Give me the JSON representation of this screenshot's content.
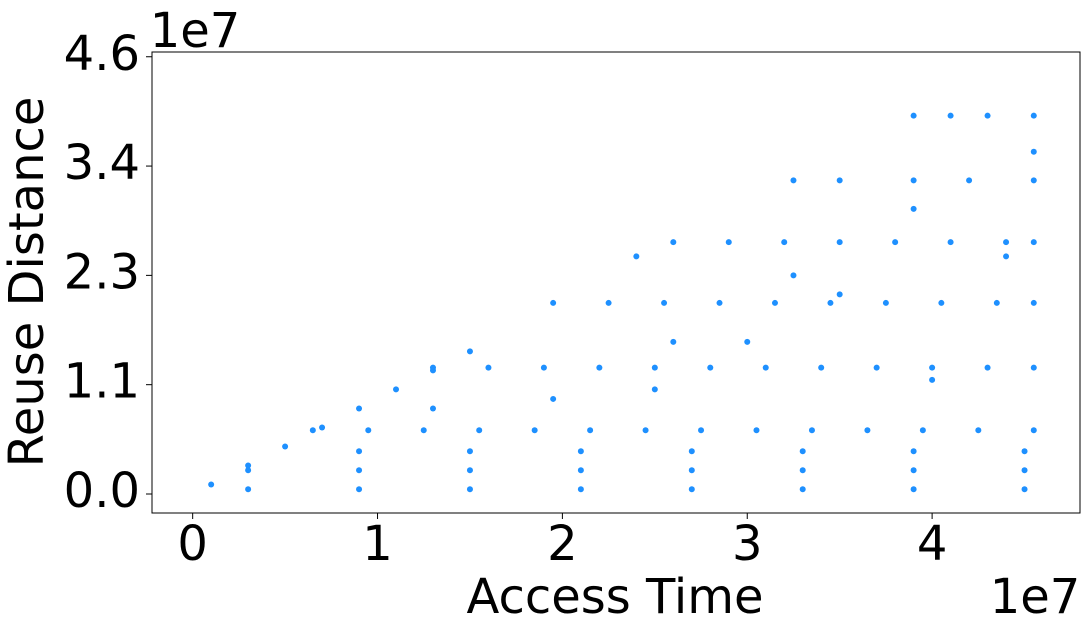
{
  "chart_data": {
    "type": "scatter",
    "x_label": "Access Time",
    "y_label": "Reuse Distance",
    "x_offset_label": "1e7",
    "y_offset_label": "1e7",
    "color": "#1e90ff",
    "x": [
      0.1,
      0.3,
      0.5,
      0.7,
      0.9,
      1.1,
      1.3,
      1.5,
      2.4,
      0.65,
      0.95,
      1.25,
      1.55,
      1.85,
      2.15,
      2.45,
      2.75,
      3.05,
      3.35,
      3.65,
      3.95,
      4.25,
      4.55,
      1.3,
      1.6,
      1.9,
      2.2,
      2.5,
      2.8,
      3.1,
      3.4,
      3.7,
      4.0,
      4.3,
      4.55,
      1.95,
      2.25,
      2.55,
      2.85,
      3.15,
      3.45,
      3.75,
      4.05,
      4.35,
      4.55,
      2.6,
      2.9,
      3.2,
      3.5,
      3.8,
      4.1,
      4.4,
      4.55,
      3.25,
      3.5,
      3.9,
      4.2,
      4.55,
      3.9,
      4.1,
      4.3,
      4.55,
      0.3,
      0.9,
      1.5,
      2.1,
      2.7,
      3.3,
      3.9,
      4.5,
      0.3,
      0.9,
      1.5,
      2.1,
      2.7,
      3.3,
      3.9,
      4.5,
      0.9,
      1.5,
      2.1,
      2.7,
      3.3,
      3.9,
      4.5,
      1.95,
      2.6,
      3.25,
      3.9,
      1.3,
      4.55,
      2.5,
      3.0,
      3.5,
      4.0,
      4.4
    ],
    "values": [
      0.1,
      0.3,
      0.5,
      0.7,
      0.9,
      1.1,
      1.3,
      1.5,
      2.5,
      0.67,
      0.67,
      0.67,
      0.67,
      0.67,
      0.67,
      0.67,
      0.67,
      0.67,
      0.67,
      0.67,
      0.67,
      0.67,
      0.67,
      1.33,
      1.33,
      1.33,
      1.33,
      1.33,
      1.33,
      1.33,
      1.33,
      1.33,
      1.33,
      1.33,
      1.33,
      2.01,
      2.01,
      2.01,
      2.01,
      2.01,
      2.01,
      2.01,
      2.01,
      2.01,
      2.01,
      2.65,
      2.65,
      2.65,
      2.65,
      2.65,
      2.65,
      2.65,
      2.65,
      3.3,
      3.3,
      3.3,
      3.3,
      3.3,
      3.98,
      3.98,
      3.98,
      3.98,
      0.05,
      0.05,
      0.05,
      0.05,
      0.05,
      0.05,
      0.05,
      0.05,
      0.25,
      0.25,
      0.25,
      0.25,
      0.25,
      0.25,
      0.25,
      0.25,
      0.45,
      0.45,
      0.45,
      0.45,
      0.45,
      0.45,
      0.45,
      1.0,
      1.6,
      2.3,
      3.0,
      0.9,
      3.6,
      1.1,
      1.6,
      2.1,
      1.2,
      2.5
    ],
    "xlim": [
      -0.22,
      4.8
    ],
    "ylim": [
      -0.2,
      4.65
    ],
    "xticks": [
      0,
      1,
      2,
      3,
      4
    ],
    "yticks": [
      {
        "value": 0,
        "label": "0.0"
      },
      {
        "value": 1.15,
        "label": "1.1"
      },
      {
        "value": 2.3,
        "label": "2.3"
      },
      {
        "value": 3.45,
        "label": "3.4"
      },
      {
        "value": 4.6,
        "label": "4.6"
      }
    ]
  }
}
